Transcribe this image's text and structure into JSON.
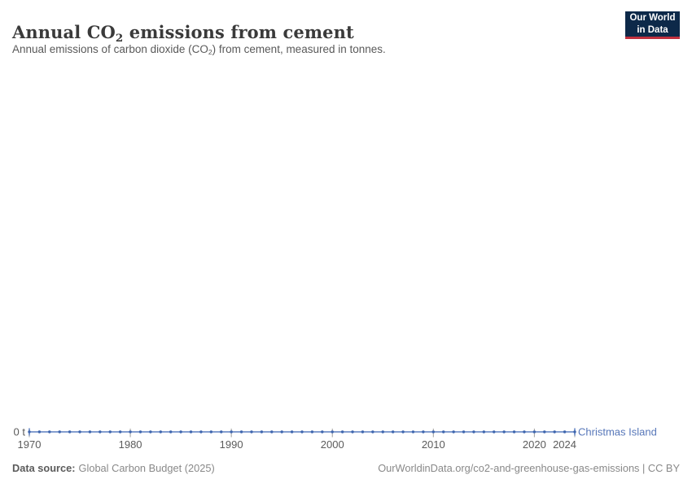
{
  "header": {
    "title_parts": {
      "pre": "Annual CO",
      "sub": "2",
      "post": " emissions from cement"
    },
    "subtitle_parts": {
      "pre": "Annual emissions of carbon dioxide (CO",
      "sub": "2",
      "post": ") from cement, measured in tonnes."
    },
    "logo": {
      "line1": "Our World",
      "line2": "in Data"
    }
  },
  "chart_data": {
    "type": "line",
    "title": "Annual CO2 emissions from cement",
    "subtitle": "Annual emissions of carbon dioxide (CO2) from cement, measured in tonnes.",
    "unit": "t",
    "y_zero_label": "0 t",
    "x_range": [
      1970,
      2024
    ],
    "xticks": [
      1970,
      1980,
      1990,
      2000,
      2010,
      2020,
      2024
    ],
    "x": [
      1970,
      1971,
      1972,
      1973,
      1974,
      1975,
      1976,
      1977,
      1978,
      1979,
      1980,
      1981,
      1982,
      1983,
      1984,
      1985,
      1986,
      1987,
      1988,
      1989,
      1990,
      1991,
      1992,
      1993,
      1994,
      1995,
      1996,
      1997,
      1998,
      1999,
      2000,
      2001,
      2002,
      2003,
      2004,
      2005,
      2006,
      2007,
      2008,
      2009,
      2010,
      2011,
      2012,
      2013,
      2014,
      2015,
      2016,
      2017,
      2018,
      2019,
      2020,
      2021,
      2022,
      2023,
      2024
    ],
    "series": [
      {
        "name": "Christmas Island",
        "values": [
          0,
          0,
          0,
          0,
          0,
          0,
          0,
          0,
          0,
          0,
          0,
          0,
          0,
          0,
          0,
          0,
          0,
          0,
          0,
          0,
          0,
          0,
          0,
          0,
          0,
          0,
          0,
          0,
          0,
          0,
          0,
          0,
          0,
          0,
          0,
          0,
          0,
          0,
          0,
          0,
          0,
          0,
          0,
          0,
          0,
          0,
          0,
          0,
          0,
          0,
          0,
          0,
          0,
          0,
          0
        ]
      }
    ],
    "legend_position": "end-of-line"
  },
  "colors": {
    "line": "#5b7fc0",
    "dot": "#3f66ae",
    "entity_label": "#5777b9",
    "axis_tick": "#9c9c9c",
    "axis_label": "#5b5b5b",
    "logo_bg": "#0d2949",
    "logo_red": "#c0303e"
  },
  "footer": {
    "source_label": "Data source:",
    "source_value": "Global Carbon Budget (2025)",
    "link": "OurWorldinData.org/co2-and-greenhouse-gas-emissions | CC BY"
  }
}
